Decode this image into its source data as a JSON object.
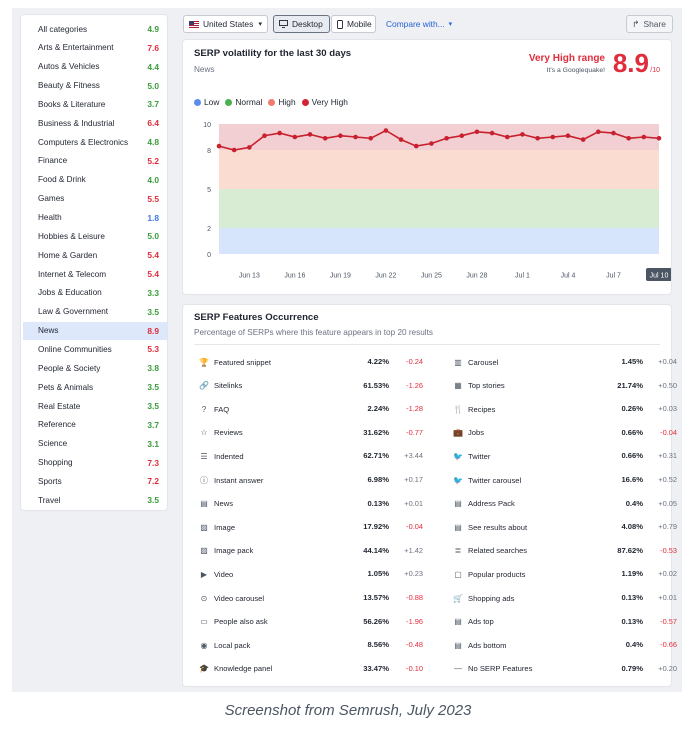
{
  "colors": {
    "green": "#3b9c3b",
    "red": "#e02d3c",
    "blue": "#3b78e7",
    "accent": "#2a62d6"
  },
  "categories": [
    {
      "label": "All categories",
      "score": "4.9",
      "level": "green"
    },
    {
      "label": "Arts & Entertainment",
      "score": "7.6",
      "level": "red"
    },
    {
      "label": "Autos & Vehicles",
      "score": "4.4",
      "level": "green"
    },
    {
      "label": "Beauty & Fitness",
      "score": "5.0",
      "level": "green"
    },
    {
      "label": "Books & Literature",
      "score": "3.7",
      "level": "green"
    },
    {
      "label": "Business & Industrial",
      "score": "6.4",
      "level": "red"
    },
    {
      "label": "Computers & Electronics",
      "score": "4.8",
      "level": "green"
    },
    {
      "label": "Finance",
      "score": "5.2",
      "level": "red"
    },
    {
      "label": "Food & Drink",
      "score": "4.0",
      "level": "green"
    },
    {
      "label": "Games",
      "score": "5.5",
      "level": "red"
    },
    {
      "label": "Health",
      "score": "1.8",
      "level": "blue"
    },
    {
      "label": "Hobbies & Leisure",
      "score": "5.0",
      "level": "green"
    },
    {
      "label": "Home & Garden",
      "score": "5.4",
      "level": "red"
    },
    {
      "label": "Internet & Telecom",
      "score": "5.4",
      "level": "red"
    },
    {
      "label": "Jobs & Education",
      "score": "3.3",
      "level": "green"
    },
    {
      "label": "Law & Government",
      "score": "3.5",
      "level": "green"
    },
    {
      "label": "News",
      "score": "8.9",
      "level": "red",
      "active": true
    },
    {
      "label": "Online Communities",
      "score": "5.3",
      "level": "red"
    },
    {
      "label": "People & Society",
      "score": "3.8",
      "level": "green"
    },
    {
      "label": "Pets & Animals",
      "score": "3.5",
      "level": "green"
    },
    {
      "label": "Real Estate",
      "score": "3.5",
      "level": "green"
    },
    {
      "label": "Reference",
      "score": "3.7",
      "level": "green"
    },
    {
      "label": "Science",
      "score": "3.1",
      "level": "green"
    },
    {
      "label": "Shopping",
      "score": "7.3",
      "level": "red"
    },
    {
      "label": "Sports",
      "score": "7.2",
      "level": "red"
    },
    {
      "label": "Travel",
      "score": "3.5",
      "level": "green"
    }
  ],
  "toolbar": {
    "country": "United States",
    "desktop": "Desktop",
    "mobile": "Mobile",
    "compare": "Compare with...",
    "share": "Share"
  },
  "volatility": {
    "title": "SERP volatility for the last 30 days",
    "subtitle": "News",
    "range_label": "Very High range",
    "range_note": "It's a Googlequake!",
    "score": "8.9",
    "score_denom": "/10",
    "legend": [
      {
        "name": "Low",
        "color": "#5b8def"
      },
      {
        "name": "Normal",
        "color": "#4caf50"
      },
      {
        "name": "High",
        "color": "#ef7b6f"
      },
      {
        "name": "Very High",
        "color": "#d32535"
      }
    ]
  },
  "chart_data": {
    "type": "line",
    "x": [
      "Jun 11",
      "Jun 12",
      "Jun 13",
      "Jun 14",
      "Jun 15",
      "Jun 16",
      "Jun 17",
      "Jun 18",
      "Jun 19",
      "Jun 20",
      "Jun 21",
      "Jun 22",
      "Jun 23",
      "Jun 24",
      "Jun 25",
      "Jun 26",
      "Jun 27",
      "Jun 28",
      "Jun 29",
      "Jun 30",
      "Jul 1",
      "Jul 2",
      "Jul 3",
      "Jul 4",
      "Jul 5",
      "Jul 6",
      "Jul 7",
      "Jul 8",
      "Jul 9",
      "Jul 10"
    ],
    "values": [
      8.3,
      8.0,
      8.2,
      9.1,
      9.3,
      9.0,
      9.2,
      8.9,
      9.1,
      9.0,
      8.9,
      9.5,
      8.8,
      8.3,
      8.5,
      8.9,
      9.1,
      9.4,
      9.3,
      9.0,
      9.2,
      8.9,
      9.0,
      9.1,
      8.8,
      9.4,
      9.3,
      8.9,
      9.0,
      8.9
    ],
    "xticks": [
      "Jun 13",
      "Jun 16",
      "Jun 19",
      "Jun 22",
      "Jun 25",
      "Jun 28",
      "Jul 1",
      "Jul 4",
      "Jul 7",
      "Jul 10"
    ],
    "highlight_tick": "Jul 10",
    "yticks": [
      0,
      2,
      5,
      8,
      10
    ],
    "ylim": [
      0,
      10
    ],
    "bands": [
      {
        "from": 0,
        "to": 2,
        "color": "#d6e5fb"
      },
      {
        "from": 2,
        "to": 5,
        "color": "#d8ecd4"
      },
      {
        "from": 5,
        "to": 8,
        "color": "#fbdcd0"
      },
      {
        "from": 8,
        "to": 10,
        "color": "#f2cfd3"
      }
    ],
    "line_color": "#c8202e"
  },
  "features": {
    "title": "SERP Features Occurrence",
    "subtitle": "Percentage of SERPs where this feature appears in top 20 results",
    "left": [
      {
        "name": "Featured snippet",
        "value": "4.22%",
        "delta": "-0.24",
        "icon": "trophy-icon",
        "glyph": "🏆"
      },
      {
        "name": "Sitelinks",
        "value": "61.53%",
        "delta": "-1.26",
        "icon": "link-icon",
        "glyph": "🔗"
      },
      {
        "name": "FAQ",
        "value": "2.24%",
        "delta": "-1.28",
        "icon": "question-icon",
        "glyph": "?"
      },
      {
        "name": "Reviews",
        "value": "31.62%",
        "delta": "-0.77",
        "icon": "star-icon",
        "glyph": "☆"
      },
      {
        "name": "Indented",
        "value": "62.71%",
        "delta": "+3.44",
        "icon": "indent-icon",
        "glyph": "☰"
      },
      {
        "name": "Instant answer",
        "value": "6.98%",
        "delta": "+0.17",
        "icon": "help-circle-icon",
        "glyph": "ⓘ"
      },
      {
        "name": "News",
        "value": "0.13%",
        "delta": "+0.01",
        "icon": "news-icon",
        "glyph": "▤"
      },
      {
        "name": "Image",
        "value": "17.92%",
        "delta": "-0.04",
        "icon": "image-icon",
        "glyph": "▨"
      },
      {
        "name": "Image pack",
        "value": "44.14%",
        "delta": "+1.42",
        "icon": "image-pack-icon",
        "glyph": "▨"
      },
      {
        "name": "Video",
        "value": "1.05%",
        "delta": "+0.23",
        "icon": "video-icon",
        "glyph": "▶"
      },
      {
        "name": "Video carousel",
        "value": "13.57%",
        "delta": "-0.88",
        "icon": "video-carousel-icon",
        "glyph": "⊙"
      },
      {
        "name": "People also ask",
        "value": "56.26%",
        "delta": "-1.96",
        "icon": "chat-icon",
        "glyph": "▭"
      },
      {
        "name": "Local pack",
        "value": "8.56%",
        "delta": "-0.48",
        "icon": "map-pin-icon",
        "glyph": "◉"
      },
      {
        "name": "Knowledge panel",
        "value": "33.47%",
        "delta": "-0.10",
        "icon": "graduation-cap-icon",
        "glyph": "🎓"
      }
    ],
    "right": [
      {
        "name": "Carousel",
        "value": "1.45%",
        "delta": "+0.04",
        "icon": "carousel-icon",
        "glyph": "▥"
      },
      {
        "name": "Top stories",
        "value": "21.74%",
        "delta": "+0.50",
        "icon": "top-stories-icon",
        "glyph": "▦"
      },
      {
        "name": "Recipes",
        "value": "0.26%",
        "delta": "+0.03",
        "icon": "fork-knife-icon",
        "glyph": "🍴"
      },
      {
        "name": "Jobs",
        "value": "0.66%",
        "delta": "-0.04",
        "icon": "briefcase-icon",
        "glyph": "💼"
      },
      {
        "name": "Twitter",
        "value": "0.66%",
        "delta": "+0.31",
        "icon": "twitter-icon",
        "glyph": "🐦"
      },
      {
        "name": "Twitter carousel",
        "value": "16.6%",
        "delta": "+0.52",
        "icon": "twitter-carousel-icon",
        "glyph": "🐦"
      },
      {
        "name": "Address Pack",
        "value": "0.4%",
        "delta": "+0.05",
        "icon": "address-icon",
        "glyph": "▤"
      },
      {
        "name": "See results about",
        "value": "4.08%",
        "delta": "+0.79",
        "icon": "list-icon",
        "glyph": "▤"
      },
      {
        "name": "Related searches",
        "value": "87.62%",
        "delta": "-0.53",
        "icon": "related-icon",
        "glyph": "≣"
      },
      {
        "name": "Popular products",
        "value": "1.19%",
        "delta": "+0.02",
        "icon": "products-icon",
        "glyph": "▢"
      },
      {
        "name": "Shopping ads",
        "value": "0.13%",
        "delta": "+0.01",
        "icon": "cart-icon",
        "glyph": "🛒"
      },
      {
        "name": "Ads top",
        "value": "0.13%",
        "delta": "-0.57",
        "icon": "ads-top-icon",
        "glyph": "▤"
      },
      {
        "name": "Ads bottom",
        "value": "0.4%",
        "delta": "-0.66",
        "icon": "ads-bottom-icon",
        "glyph": "▤"
      },
      {
        "name": "No SERP Features",
        "value": "0.79%",
        "delta": "+0.20",
        "icon": "dash-icon",
        "glyph": "—"
      }
    ]
  },
  "caption": "Screenshot from Semrush, July 2023"
}
